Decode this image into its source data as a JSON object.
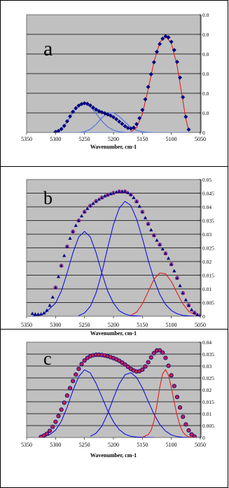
{
  "chart_data": [
    {
      "type": "line",
      "panel_label": "a",
      "xlabel": "Wavenumber, cm-1",
      "xlim": [
        5350,
        5050
      ],
      "x_ticks": [
        "5350",
        "5300",
        "5250",
        "5200",
        "5150",
        "5100",
        "5050"
      ],
      "ylim": [
        0,
        0.06
      ],
      "y_ticks": [
        "0",
        "0.0",
        "0.0",
        "0.0",
        "0.0",
        "0.0",
        "0.0"
      ],
      "grid": true,
      "plot_background": "#c0c0c0",
      "series": [
        {
          "kind": "markers",
          "marker": "diamond",
          "color": "#000080",
          "x": [
            5300,
            5295,
            5290,
            5285,
            5280,
            5275,
            5270,
            5265,
            5260,
            5255,
            5250,
            5245,
            5240,
            5235,
            5230,
            5225,
            5220,
            5215,
            5210,
            5205,
            5200,
            5195,
            5190,
            5185,
            5180,
            5175,
            5170,
            5165,
            5160,
            5155,
            5150,
            5145,
            5140,
            5135,
            5130,
            5125,
            5120,
            5115,
            5110,
            5105,
            5100,
            5095,
            5090,
            5085,
            5080,
            5075,
            5070
          ],
          "y": [
            0.0003,
            0.0008,
            0.0018,
            0.0034,
            0.0057,
            0.0082,
            0.0106,
            0.0124,
            0.0137,
            0.0145,
            0.0149,
            0.0146,
            0.0138,
            0.0127,
            0.0117,
            0.0109,
            0.0103,
            0.0098,
            0.0092,
            0.0086,
            0.0078,
            0.0068,
            0.0056,
            0.0044,
            0.0032,
            0.0023,
            0.002,
            0.0025,
            0.0043,
            0.0073,
            0.0115,
            0.0169,
            0.0232,
            0.0297,
            0.0358,
            0.0411,
            0.0451,
            0.0478,
            0.049,
            0.0485,
            0.0462,
            0.042,
            0.036,
            0.028,
            0.018,
            0.008,
            0.0015
          ]
        },
        {
          "kind": "line",
          "color": "#4a6fdc",
          "name": "",
          "x": [
            5300,
            5290,
            5280,
            5270,
            5260,
            5250,
            5240,
            5230,
            5220,
            5210,
            5200,
            5190,
            5180,
            5170
          ],
          "y": [
            0.0001,
            0.0016,
            0.0054,
            0.0104,
            0.014,
            0.0149,
            0.0132,
            0.0097,
            0.0058,
            0.0029,
            0.0012,
            0.0004,
            0.0001,
            0.0
          ]
        },
        {
          "kind": "line",
          "color": "#4a6fdc",
          "name": "",
          "x": [
            5260,
            5250,
            5240,
            5230,
            5220,
            5210,
            5200,
            5190,
            5180,
            5170,
            5160,
            5150,
            5140,
            5130
          ],
          "y": [
            0.0,
            0.0004,
            0.0016,
            0.0042,
            0.0075,
            0.0098,
            0.0101,
            0.0082,
            0.0053,
            0.0027,
            0.0011,
            0.0004,
            0.0001,
            0.0
          ]
        },
        {
          "kind": "line",
          "color": "#e02020",
          "name": "",
          "x": [
            5170,
            5160,
            5150,
            5140,
            5130,
            5120,
            5110,
            5100,
            5090,
            5080,
            5075,
            5070
          ],
          "y": [
            0.0003,
            0.0025,
            0.0095,
            0.022,
            0.036,
            0.046,
            0.049,
            0.0455,
            0.034,
            0.016,
            0.007,
            0.001
          ]
        },
        {
          "kind": "line",
          "color": "#6a8fff",
          "name": "",
          "x": [
            5300,
            5070
          ],
          "y": [
            0.0,
            0.0
          ]
        }
      ]
    },
    {
      "type": "line",
      "panel_label": "b",
      "xlabel": "Wavenumber, cm-1",
      "xlim": [
        5350,
        5050
      ],
      "x_ticks": [
        "5350",
        "5300",
        "5250",
        "5200",
        "5150",
        "5100",
        "5050"
      ],
      "ylim": [
        0,
        0.05
      ],
      "y_ticks": [
        "0",
        "0.005",
        "0.01",
        "0.015",
        "0.02",
        "0.025",
        "0.03",
        "0.035",
        "0.04",
        "0.045",
        "0.05"
      ],
      "grid": true,
      "plot_background": "#c0c0c0",
      "series": [
        {
          "kind": "markers",
          "marker": "triangle",
          "color": "#000080",
          "x": [
            5340,
            5335,
            5330,
            5325,
            5320,
            5315,
            5310,
            5305,
            5300,
            5295,
            5290,
            5285,
            5280,
            5275,
            5270,
            5265,
            5260,
            5255,
            5250,
            5245,
            5240,
            5235,
            5230,
            5225,
            5220,
            5215,
            5210,
            5205,
            5200,
            5195,
            5190,
            5185,
            5180,
            5175,
            5170,
            5165,
            5160,
            5155,
            5150,
            5145,
            5140,
            5135,
            5130,
            5125,
            5120,
            5115,
            5110,
            5105,
            5100,
            5095,
            5090,
            5085,
            5080,
            5075,
            5070,
            5065,
            5060,
            5055,
            5050
          ],
          "y": [
            0.001,
            0.0008,
            0.0007,
            0.0008,
            0.0012,
            0.0022,
            0.004,
            0.007,
            0.0105,
            0.0145,
            0.0185,
            0.0222,
            0.0255,
            0.0285,
            0.031,
            0.0332,
            0.035,
            0.0367,
            0.0382,
            0.0394,
            0.0404,
            0.0413,
            0.0421,
            0.0428,
            0.0434,
            0.044,
            0.0444,
            0.0448,
            0.0451,
            0.0454,
            0.0456,
            0.0457,
            0.0456,
            0.0452,
            0.0445,
            0.0434,
            0.042,
            0.0402,
            0.0382,
            0.036,
            0.0338,
            0.0316,
            0.0296,
            0.0278,
            0.0262,
            0.0246,
            0.023,
            0.0212,
            0.019,
            0.0166,
            0.014,
            0.0112,
            0.0085,
            0.006,
            0.004,
            0.0024,
            0.0013,
            0.0006,
            0.0003
          ]
        },
        {
          "kind": "markers",
          "marker": "circle-open",
          "color": "#a01080",
          "x": [
            5300,
            5290,
            5280,
            5270,
            5260,
            5250,
            5240,
            5230,
            5220,
            5210,
            5200,
            5190,
            5180,
            5170,
            5160,
            5150,
            5140,
            5130,
            5120,
            5110,
            5100,
            5090,
            5080,
            5070,
            5060,
            5050
          ],
          "y": [
            0.0105,
            0.0185,
            0.0255,
            0.031,
            0.035,
            0.0382,
            0.0404,
            0.0421,
            0.0434,
            0.0444,
            0.0451,
            0.0456,
            0.0456,
            0.0445,
            0.042,
            0.0382,
            0.0338,
            0.0296,
            0.0262,
            0.023,
            0.019,
            0.014,
            0.0085,
            0.004,
            0.0013,
            0.0003
          ]
        },
        {
          "kind": "line",
          "color": "#1010e0",
          "name": "",
          "x": [
            5340,
            5320,
            5300,
            5290,
            5280,
            5270,
            5260,
            5250,
            5240,
            5230,
            5220,
            5210,
            5200,
            5190,
            5180,
            5170,
            5160,
            5150
          ],
          "y": [
            0.0,
            0.0008,
            0.0048,
            0.0092,
            0.0158,
            0.0232,
            0.029,
            0.031,
            0.029,
            0.0232,
            0.0158,
            0.0092,
            0.0048,
            0.002,
            0.0008,
            0.0002,
            0.0001,
            0.0
          ]
        },
        {
          "kind": "line",
          "color": "#1010e0",
          "name": "",
          "x": [
            5260,
            5250,
            5240,
            5230,
            5220,
            5210,
            5200,
            5190,
            5180,
            5170,
            5160,
            5150,
            5140,
            5130,
            5120,
            5110,
            5100,
            5090,
            5080,
            5070,
            5060
          ],
          "y": [
            0.0002,
            0.0012,
            0.0036,
            0.0085,
            0.016,
            0.025,
            0.0335,
            0.0395,
            0.042,
            0.0405,
            0.0355,
            0.0285,
            0.0205,
            0.0135,
            0.008,
            0.0043,
            0.0021,
            0.0009,
            0.0003,
            0.0001,
            0.0
          ]
        },
        {
          "kind": "line",
          "color": "#e02020",
          "name": "",
          "x": [
            5170,
            5160,
            5150,
            5140,
            5130,
            5120,
            5110,
            5100,
            5090,
            5080,
            5070,
            5060,
            5050
          ],
          "y": [
            0.0003,
            0.0015,
            0.0045,
            0.009,
            0.0135,
            0.0158,
            0.0155,
            0.0127,
            0.0085,
            0.0045,
            0.0018,
            0.0006,
            0.0001
          ]
        }
      ]
    },
    {
      "type": "line",
      "panel_label": "c",
      "xlabel": "Wavenumber, cm-1",
      "xlim": [
        5350,
        5050
      ],
      "x_ticks": [
        "5350",
        "5300",
        "5250",
        "5200",
        "5150",
        "5100",
        "5050"
      ],
      "ylim": [
        0,
        0.04
      ],
      "y_ticks": [
        "0",
        "0.005",
        "0.01",
        "0.015",
        "0.02",
        "0.025",
        "0.03",
        "0.035",
        "0.04"
      ],
      "grid": true,
      "plot_background": "#c0c0c0",
      "series": [
        {
          "kind": "markers",
          "marker": "circle-filled",
          "color": "#c02050",
          "edge": "#000080",
          "x": [
            5325,
            5320,
            5315,
            5310,
            5305,
            5300,
            5295,
            5290,
            5285,
            5280,
            5275,
            5270,
            5265,
            5260,
            5255,
            5250,
            5245,
            5240,
            5235,
            5230,
            5225,
            5220,
            5215,
            5210,
            5205,
            5200,
            5195,
            5190,
            5185,
            5180,
            5175,
            5170,
            5165,
            5160,
            5155,
            5150,
            5145,
            5140,
            5135,
            5130,
            5125,
            5120,
            5115,
            5110,
            5105,
            5100,
            5095,
            5090,
            5085,
            5080,
            5075,
            5070,
            5065,
            5060
          ],
          "y": [
            0.0003,
            0.0008,
            0.0016,
            0.0028,
            0.0045,
            0.0066,
            0.009,
            0.0117,
            0.0146,
            0.0176,
            0.0207,
            0.0237,
            0.0264,
            0.0288,
            0.0308,
            0.0323,
            0.0334,
            0.0341,
            0.0345,
            0.0347,
            0.0347,
            0.0346,
            0.0344,
            0.0341,
            0.0337,
            0.0333,
            0.0328,
            0.0322,
            0.0314,
            0.0306,
            0.0297,
            0.0288,
            0.0281,
            0.0277,
            0.0278,
            0.0285,
            0.0298,
            0.0316,
            0.0336,
            0.0354,
            0.0365,
            0.0366,
            0.0356,
            0.0334,
            0.0301,
            0.0261,
            0.0216,
            0.017,
            0.0126,
            0.0087,
            0.0055,
            0.003,
            0.0013,
            0.0004
          ]
        },
        {
          "kind": "line",
          "color": "#1010e0",
          "name": "",
          "x": [
            5320,
            5310,
            5300,
            5290,
            5280,
            5270,
            5260,
            5250,
            5240,
            5230,
            5220,
            5210,
            5200,
            5190,
            5180,
            5170,
            5160,
            5150,
            5140,
            5130
          ],
          "y": [
            0.0004,
            0.0012,
            0.0031,
            0.0068,
            0.0127,
            0.0197,
            0.0256,
            0.0284,
            0.0271,
            0.0227,
            0.017,
            0.0113,
            0.0066,
            0.0033,
            0.0014,
            0.0005,
            0.0002,
            0.0001,
            0.0,
            0.0
          ]
        },
        {
          "kind": "line",
          "color": "#1010e0",
          "name": "",
          "x": [
            5240,
            5230,
            5220,
            5210,
            5200,
            5190,
            5180,
            5170,
            5160,
            5150,
            5140,
            5130,
            5120,
            5110,
            5100,
            5090,
            5080,
            5070
          ],
          "y": [
            0.0005,
            0.0018,
            0.0048,
            0.01,
            0.0165,
            0.0225,
            0.0263,
            0.0272,
            0.0252,
            0.0208,
            0.0152,
            0.0098,
            0.0055,
            0.0027,
            0.0011,
            0.0004,
            0.0001,
            0.0
          ]
        },
        {
          "kind": "line",
          "color": "#e02020",
          "name": "",
          "x": [
            5150,
            5140,
            5135,
            5130,
            5125,
            5120,
            5115,
            5110,
            5105,
            5100,
            5095,
            5090,
            5085,
            5080,
            5075,
            5070,
            5065,
            5060
          ],
          "y": [
            0.0001,
            0.0012,
            0.003,
            0.007,
            0.0135,
            0.021,
            0.0268,
            0.0284,
            0.0262,
            0.021,
            0.0148,
            0.0092,
            0.005,
            0.0023,
            0.0009,
            0.0003,
            0.0001,
            0.0
          ]
        }
      ]
    }
  ]
}
